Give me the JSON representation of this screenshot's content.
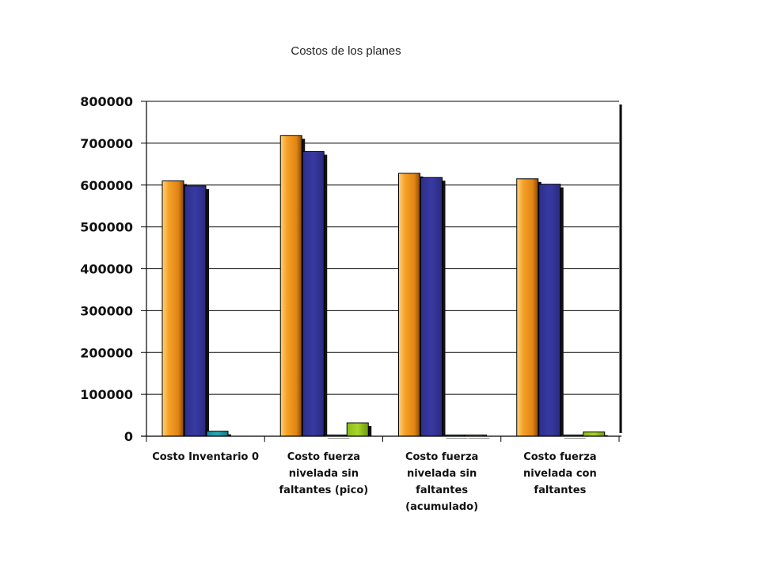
{
  "chart_data": {
    "type": "bar",
    "title": "Costos de los planes",
    "xlabel": "",
    "ylabel": "",
    "ylim": [
      0,
      800000
    ],
    "yticks": [
      "0",
      "100000",
      "200000",
      "300000",
      "400000",
      "500000",
      "600000",
      "700000",
      "800000"
    ],
    "grid": true,
    "categories": [
      [
        "Costo Inventario 0"
      ],
      [
        "Costo fuerza",
        "nivelada sin",
        "faltantes (pico)"
      ],
      [
        "Costo fuerza",
        "nivelada sin",
        "faltantes",
        "(acumulado)"
      ],
      [
        "Costo fuerza",
        "nivelada con",
        "faltantes"
      ]
    ],
    "series": [
      {
        "color": "#f29a1c",
        "values": [
          610000,
          718000,
          628000,
          615000
        ]
      },
      {
        "color": "#35359a",
        "values": [
          598000,
          680000,
          618000,
          602000
        ]
      },
      {
        "color": "#1e9aa6",
        "values": [
          12000,
          3000,
          3000,
          3000
        ]
      },
      {
        "color": "#99cc22",
        "values": [
          0,
          32000,
          3000,
          10000
        ]
      }
    ]
  }
}
